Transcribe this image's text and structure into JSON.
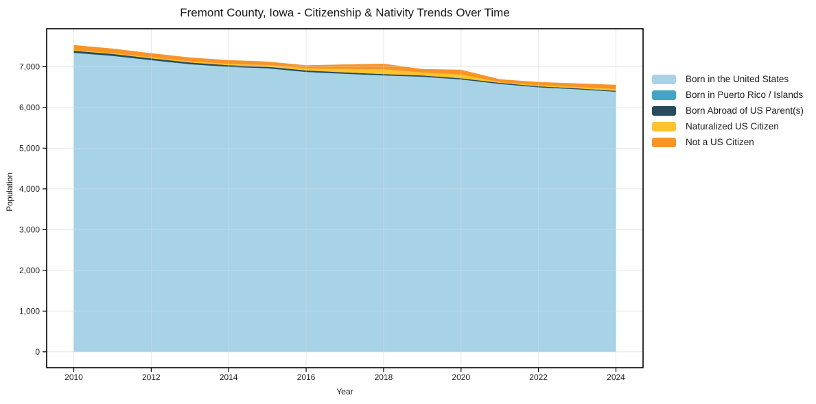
{
  "figure": {
    "title": "Fremont County, Iowa - Citizenship & Nativity Trends Over Time",
    "xlabel": "Year",
    "ylabel": "Population"
  },
  "chart_data": {
    "type": "area",
    "stacked": true,
    "title": "Fremont County, Iowa - Citizenship & Nativity Trends Over Time",
    "xlabel": "Year",
    "ylabel": "Population",
    "grid": true,
    "legend_position": "right-outside",
    "x": [
      2010,
      2011,
      2012,
      2013,
      2014,
      2015,
      2016,
      2017,
      2018,
      2019,
      2020,
      2021,
      2022,
      2023,
      2024
    ],
    "series": [
      {
        "name": "Born in the United States",
        "color": "#a8d2e6",
        "values": [
          7340,
          7265,
          7160,
          7060,
          6995,
          6960,
          6870,
          6825,
          6785,
          6753,
          6686,
          6577,
          6495,
          6445,
          6385
        ]
      },
      {
        "name": "Born in Puerto Rico / Islands",
        "color": "#43a5c5",
        "values": [
          4,
          4,
          4,
          4,
          4,
          4,
          4,
          4,
          4,
          4,
          4,
          3,
          3,
          3,
          3
        ]
      },
      {
        "name": "Born Abroad of US Parent(s)",
        "color": "#274b5d",
        "values": [
          48,
          45,
          42,
          40,
          38,
          36,
          34,
          32,
          30,
          28,
          26,
          25,
          22,
          21,
          20
        ]
      },
      {
        "name": "Naturalized US Citizen",
        "color": "#fdc32e",
        "values": [
          18,
          22,
          26,
          30,
          35,
          42,
          52,
          85,
          120,
          75,
          95,
          18,
          28,
          35,
          45
        ]
      },
      {
        "name": "Not a US Citizen",
        "color": "#f79428",
        "values": [
          118,
          105,
          95,
          88,
          85,
          80,
          70,
          105,
          130,
          78,
          110,
          65,
          72,
          82,
          98
        ]
      }
    ],
    "x_ticks": [
      2010,
      2012,
      2014,
      2016,
      2018,
      2020,
      2022,
      2024
    ],
    "y_tick_values": [
      0,
      1000,
      2000,
      3000,
      4000,
      5000,
      6000,
      7000
    ],
    "y_tick_labels": [
      "0",
      "1,000",
      "2,000",
      "3,000",
      "4,000",
      "5,000",
      "6,000",
      "7,000"
    ],
    "xlim": [
      2009.3,
      2024.7
    ],
    "ylim": [
      -390,
      7930
    ]
  }
}
